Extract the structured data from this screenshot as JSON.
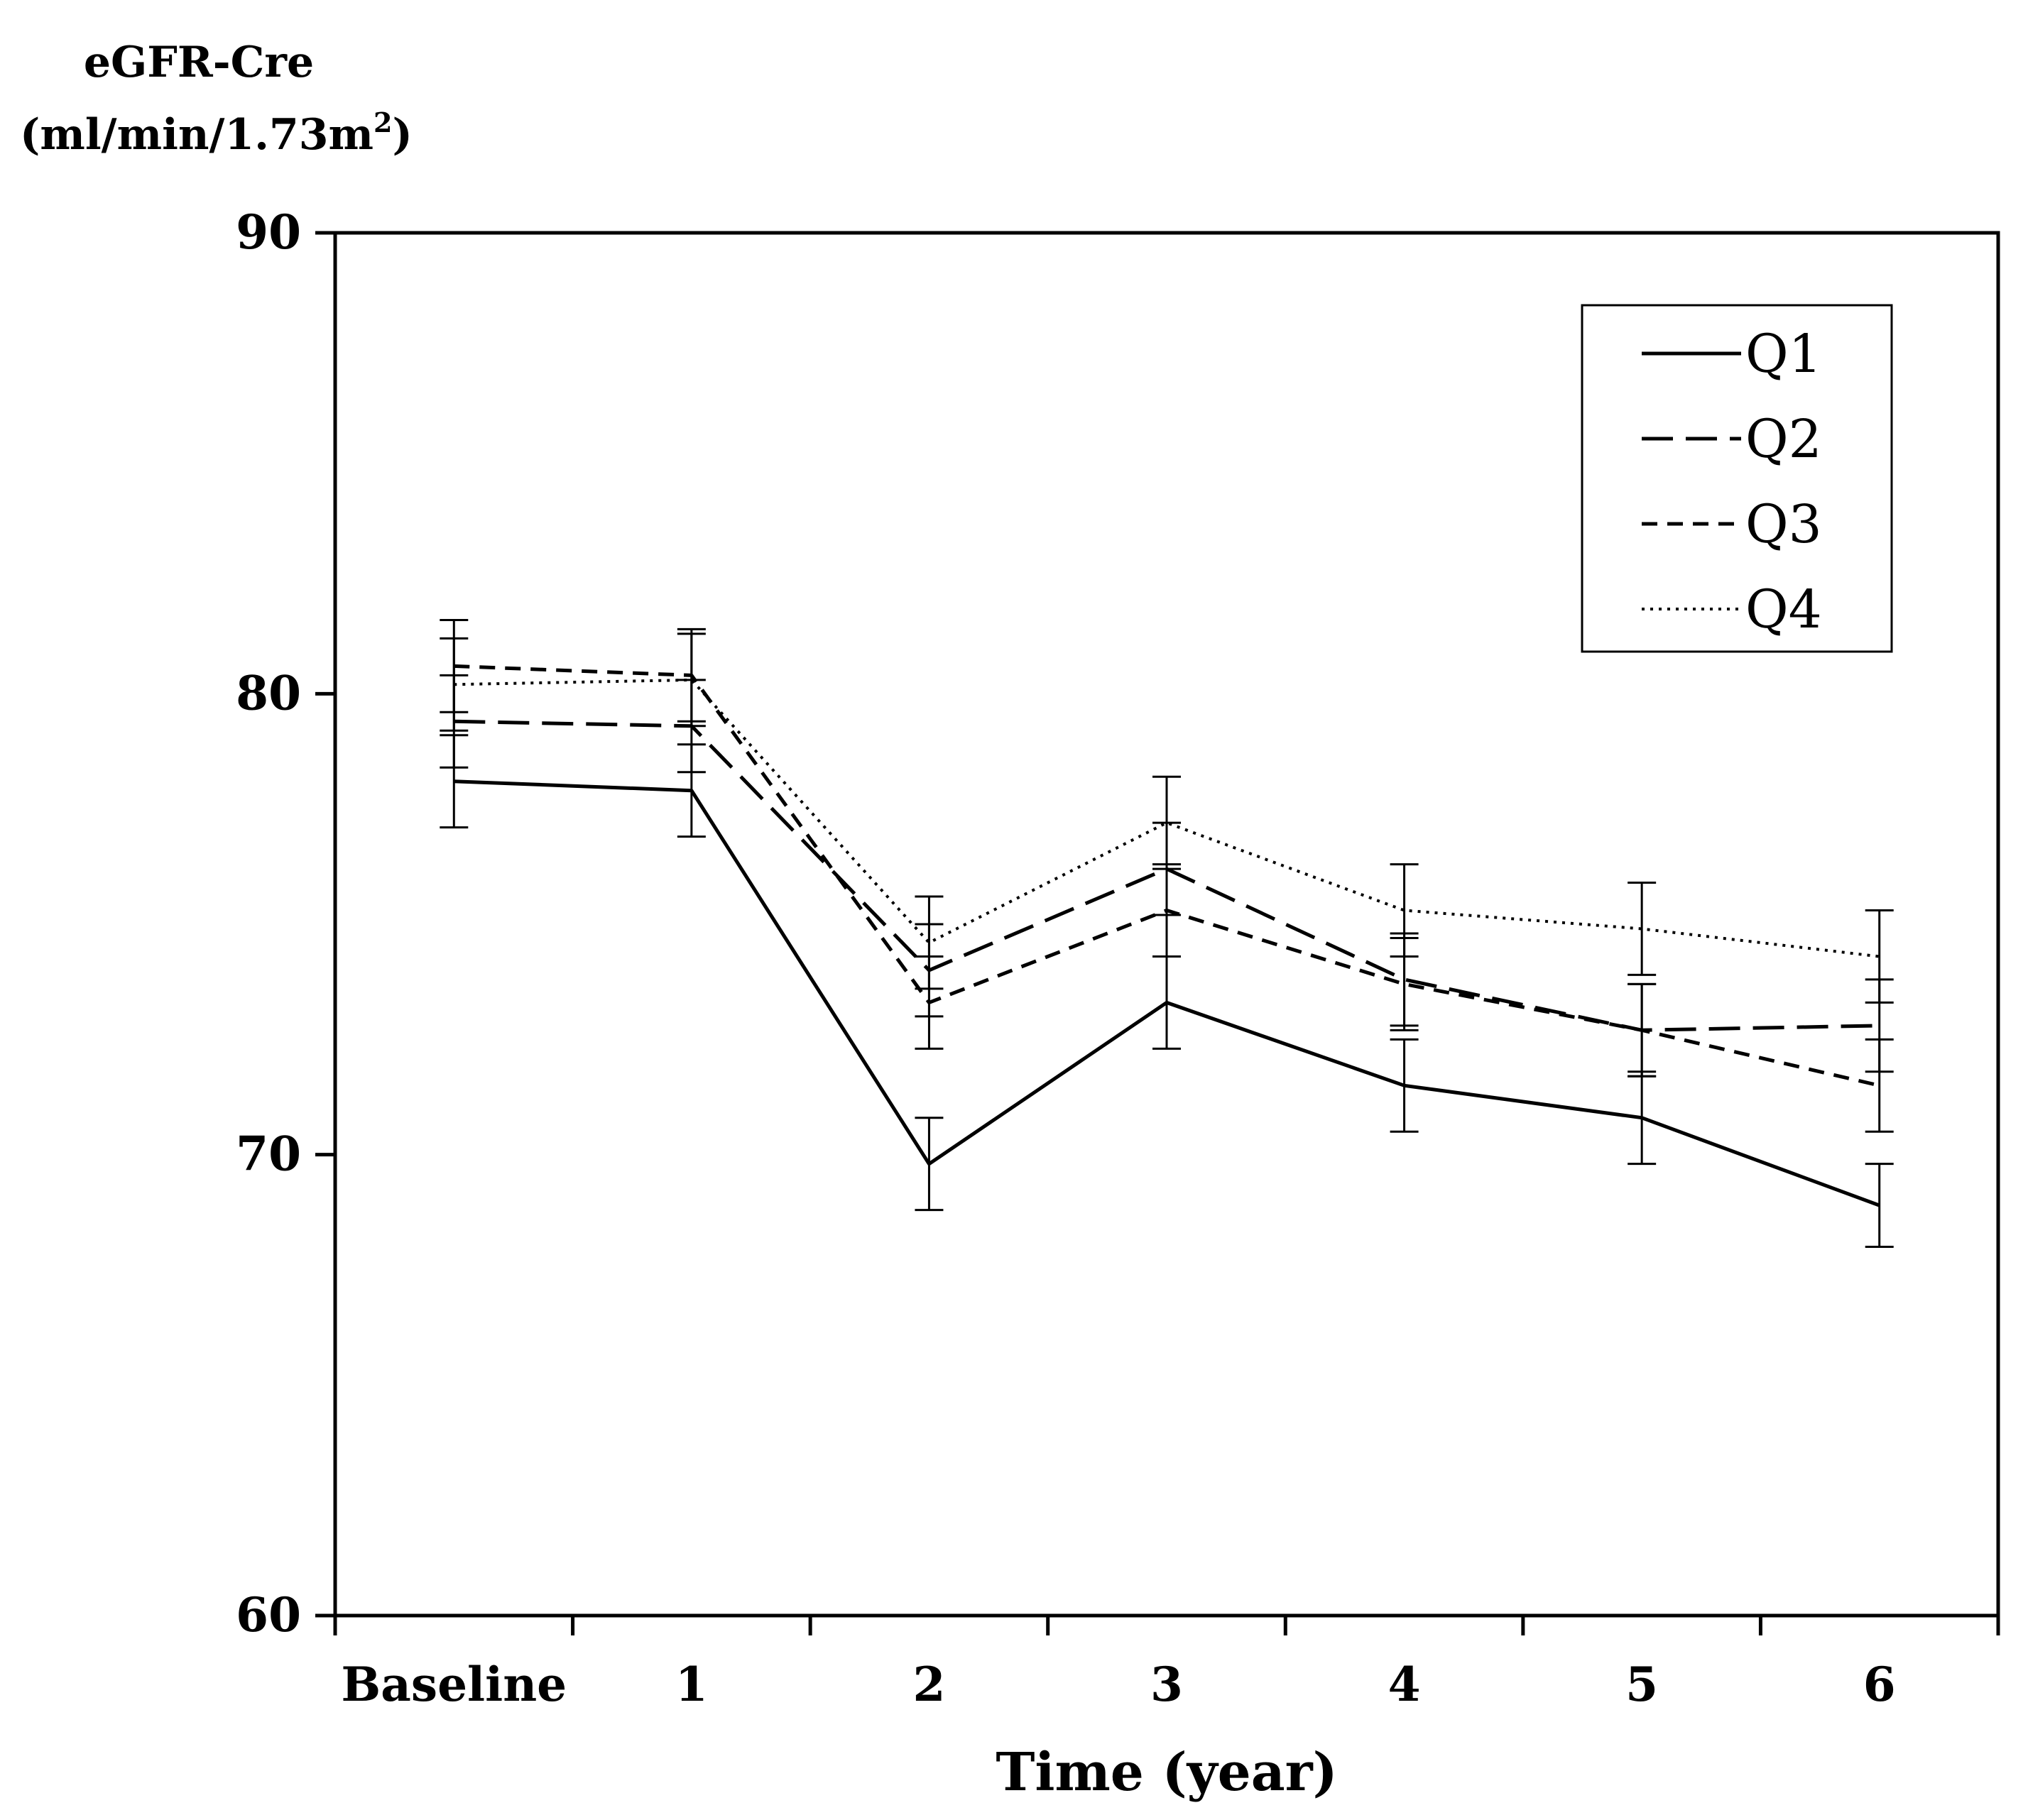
{
  "chart_data": {
    "type": "line",
    "title": "",
    "ylabel_line1": "eGFR-Cre",
    "ylabel_line2": "(ml/min/1.73m",
    "ylabel_sup": "2",
    "ylabel_close": ")",
    "xlabel": "Time (year)",
    "ylim": [
      60,
      90
    ],
    "yticks": [
      60,
      70,
      80,
      90
    ],
    "categories": [
      "Baseline",
      "1",
      "2",
      "3",
      "4",
      "5",
      "6"
    ],
    "legend_position": "top-right",
    "series": [
      {
        "name": "Q1",
        "style": "solid",
        "values": [
          78.1,
          77.9,
          69.8,
          73.3,
          71.5,
          70.8,
          68.9
        ],
        "error": [
          1.0,
          1.0,
          1.0,
          1.0,
          1.0,
          1.0,
          0.9
        ]
      },
      {
        "name": "Q2",
        "style": "long-dash",
        "values": [
          79.4,
          79.3,
          74.0,
          76.2,
          73.8,
          72.7,
          72.8
        ],
        "error": [
          1.0,
          1.0,
          1.0,
          1.0,
          1.0,
          1.0,
          1.0
        ]
      },
      {
        "name": "Q3",
        "style": "short-dash",
        "values": [
          80.6,
          80.4,
          73.3,
          75.3,
          73.7,
          72.7,
          71.5
        ],
        "error": [
          1.0,
          1.0,
          1.0,
          1.0,
          1.0,
          1.0,
          1.0
        ]
      },
      {
        "name": "Q4",
        "style": "dotted",
        "values": [
          80.2,
          80.3,
          74.6,
          77.2,
          75.3,
          74.9,
          74.3
        ],
        "error": [
          1.0,
          1.0,
          1.0,
          1.0,
          1.0,
          1.0,
          1.0
        ]
      }
    ]
  }
}
